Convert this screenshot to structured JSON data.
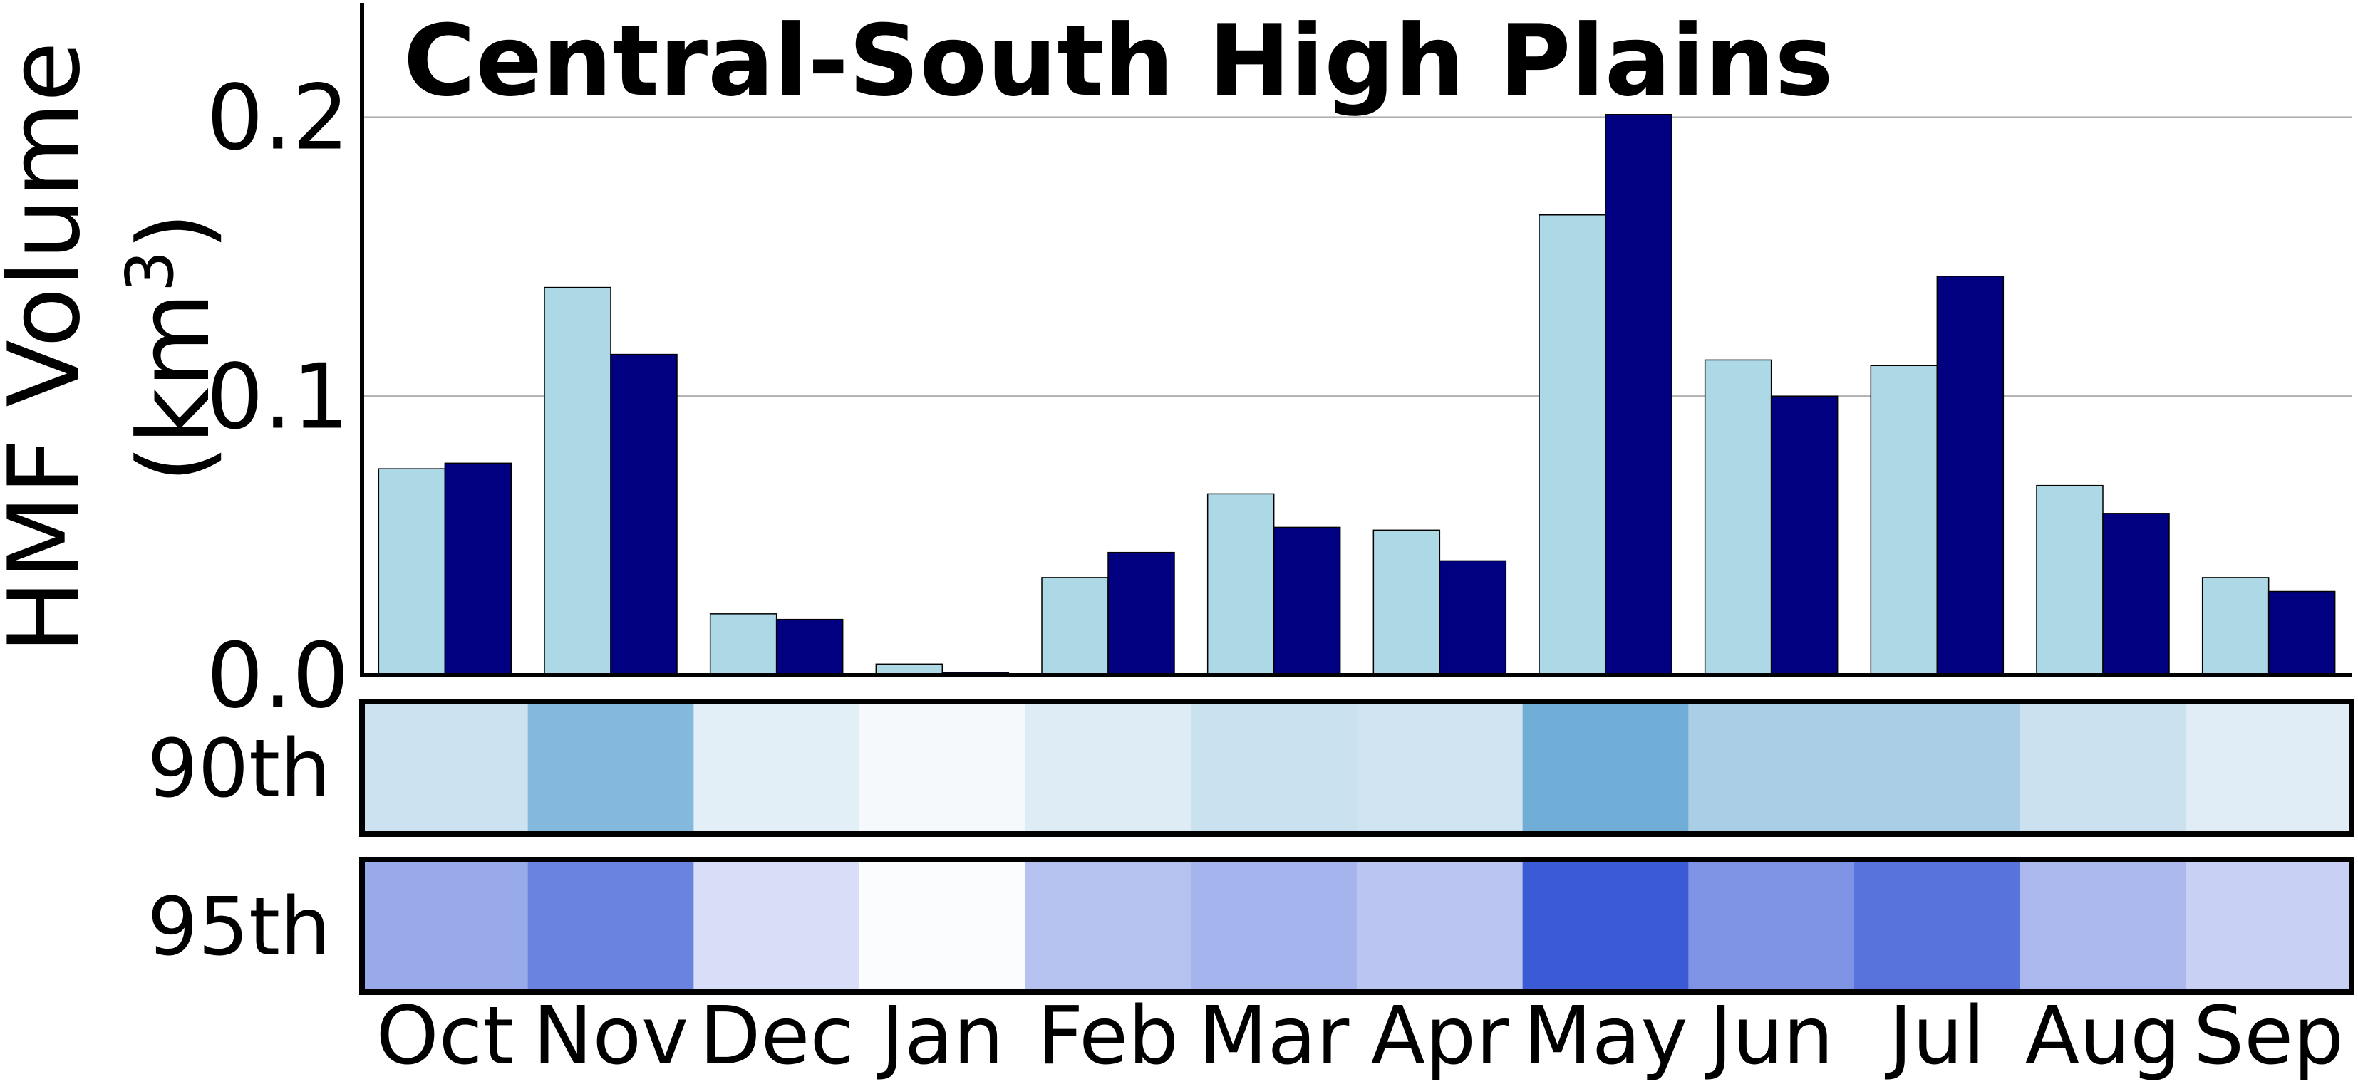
{
  "chart_data": {
    "type": "bar",
    "title": "Central-South High Plains",
    "ylabel": "HMF Volume",
    "ylabel_unit_base": "(km",
    "ylabel_unit_exp": "3",
    "ylabel_unit_close": ")",
    "ylim": [
      0,
      0.24
    ],
    "yticks": [
      0.0,
      0.1,
      0.2
    ],
    "ytick_labels": [
      "0.0",
      "0.1",
      "0.2"
    ],
    "grid": "horizontal",
    "categories": [
      "Oct",
      "Nov",
      "Dec",
      "Jan",
      "Feb",
      "Mar",
      "Apr",
      "May",
      "Jun",
      "Jul",
      "Aug",
      "Sep"
    ],
    "series": [
      {
        "color": "#add8e6",
        "values": [
          0.074,
          0.139,
          0.022,
          0.004,
          0.035,
          0.065,
          0.052,
          0.165,
          0.113,
          0.111,
          0.068,
          0.035
        ]
      },
      {
        "color": "#000080",
        "values": [
          0.076,
          0.115,
          0.02,
          0.001,
          0.044,
          0.053,
          0.041,
          0.201,
          0.1,
          0.143,
          0.058,
          0.03
        ]
      }
    ],
    "heatmap": {
      "rows": [
        {
          "label": "90th",
          "values": [
            0.35,
            0.86,
            0.2,
            0.07,
            0.23,
            0.37,
            0.33,
            1.0,
            0.6,
            0.6,
            0.36,
            0.22
          ]
        },
        {
          "label": "95th",
          "values": [
            0.52,
            0.76,
            0.2,
            0.02,
            0.38,
            0.46,
            0.35,
            1.0,
            0.66,
            0.85,
            0.43,
            0.28
          ]
        }
      ],
      "row_colors": [
        [
          "#ffffff",
          "#70add6"
        ],
        [
          "#ffffff",
          "#3b5bd6"
        ]
      ]
    }
  }
}
